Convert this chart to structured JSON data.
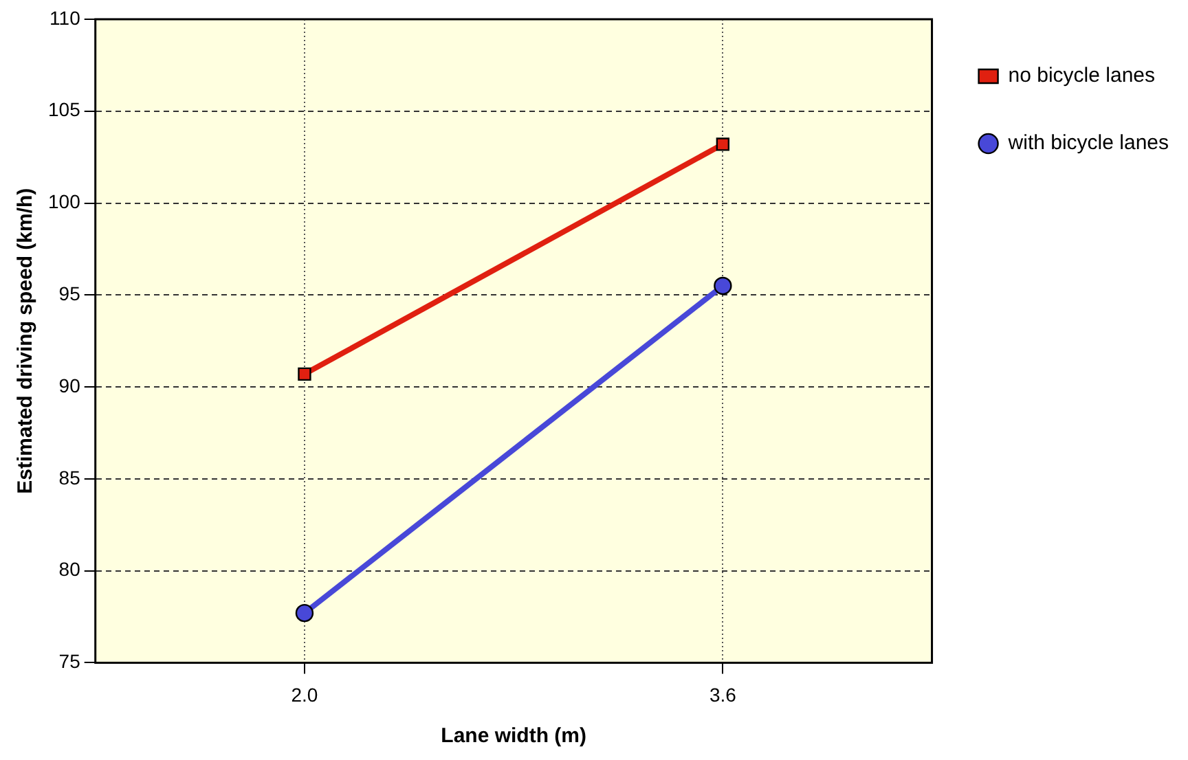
{
  "chart_data": {
    "type": "line",
    "xlabel": "Lane width (m)",
    "ylabel": "Estimated driving speed (km/h)",
    "categories": [
      "2.0",
      "3.6"
    ],
    "series": [
      {
        "name": "no bicycle lanes",
        "color": "#e02010",
        "marker": "square",
        "values": [
          90.7,
          103.2
        ]
      },
      {
        "name": "with bicycle lanes",
        "color": "#4848d8",
        "marker": "circle",
        "values": [
          77.7,
          95.5
        ]
      }
    ],
    "ylim": [
      75,
      110
    ],
    "yticks": [
      75,
      80,
      85,
      90,
      95,
      100,
      105,
      110
    ],
    "grid": true,
    "legend": "right",
    "line_style": "solid"
  }
}
